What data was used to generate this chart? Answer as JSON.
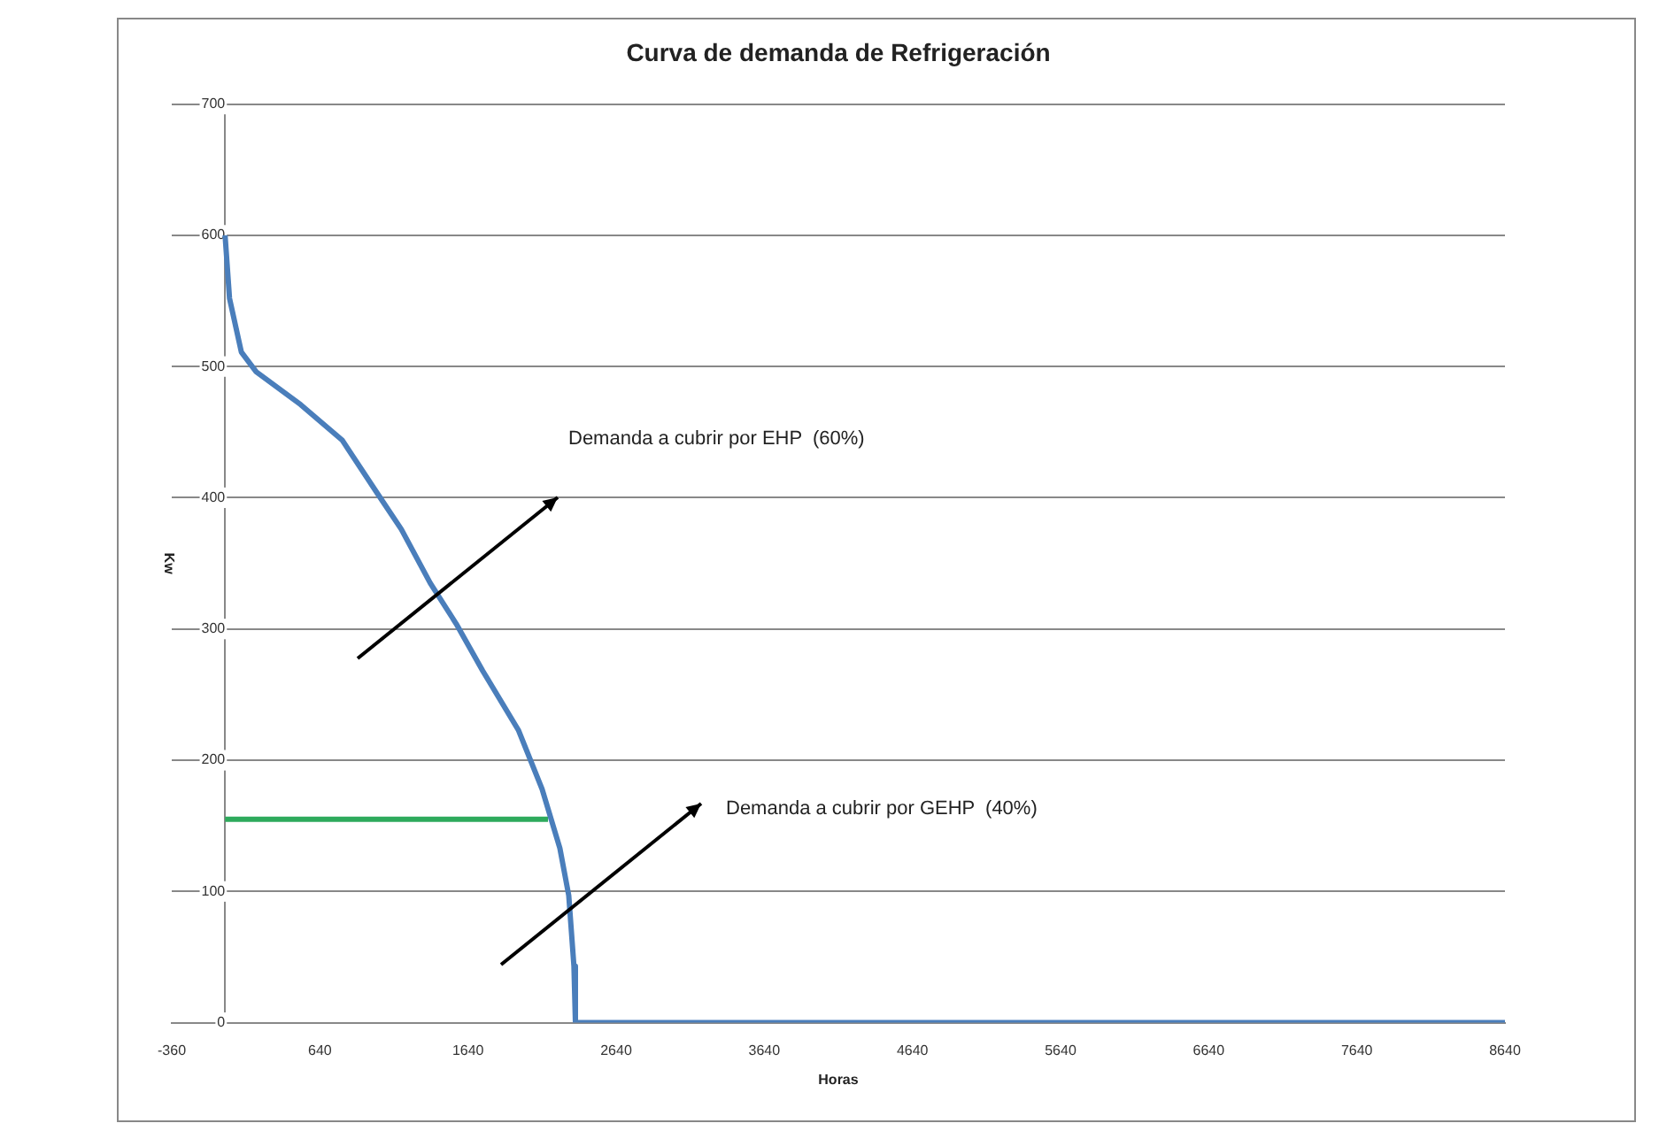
{
  "chart_data": {
    "type": "line",
    "title": "Curva de demanda de Refrigeración",
    "xlabel": "Horas",
    "ylabel": "Kw",
    "xlim": [
      -360,
      8640
    ],
    "xticks": [
      -360,
      640,
      1640,
      2640,
      3640,
      4640,
      5640,
      6640,
      7640,
      8640
    ],
    "ylim": [
      0,
      700
    ],
    "yticks": [
      0,
      100,
      200,
      300,
      400,
      500,
      600,
      700
    ],
    "grid": "y",
    "marker": "none",
    "series": [
      {
        "color": "#4a7ebb",
        "x": [
          0,
          30,
          110,
          210,
          510,
          790,
          1030,
          1190,
          1385,
          1560,
          1740,
          1980,
          2140,
          2260,
          2320,
          2355,
          2365,
          8640
        ],
        "values": [
          600,
          552,
          511,
          496,
          471,
          444,
          403,
          376,
          335,
          304,
          268,
          223,
          178,
          133,
          97,
          43,
          0,
          0
        ]
      },
      {
        "color": "#2eaa5c",
        "x": [
          0,
          2180
        ],
        "values": [
          155,
          155
        ]
      }
    ],
    "annotations": [
      "Demanda a cubrir por EHP  (60%)",
      "Demanda a cubrir por GEHP  (40%)"
    ]
  }
}
